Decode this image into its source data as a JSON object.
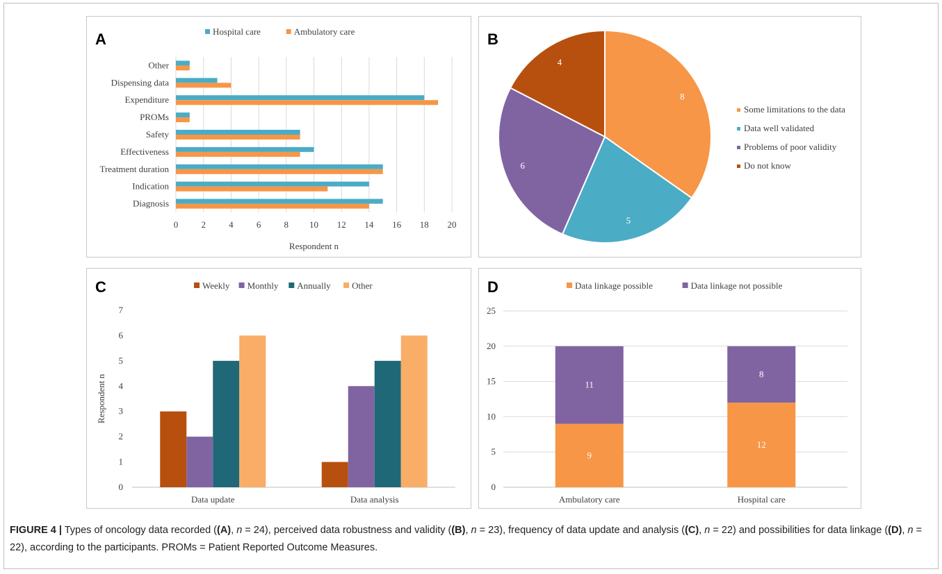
{
  "caption": {
    "label": "FIGURE 4 |",
    "parts": [
      {
        "t": "Types of oncology data recorded ("
      },
      {
        "t": "(A)",
        "b": true
      },
      {
        "t": ", "
      },
      {
        "t": "n",
        "i": true
      },
      {
        "t": " = 24), perceived data robustness and validity ("
      },
      {
        "t": "(B)",
        "b": true
      },
      {
        "t": ", "
      },
      {
        "t": "n",
        "i": true
      },
      {
        "t": " = 23), frequency of data update and analysis ("
      },
      {
        "t": "(C)",
        "b": true
      },
      {
        "t": ", "
      },
      {
        "t": "n",
        "i": true
      },
      {
        "t": " = 22) and possibilities for data linkage ("
      },
      {
        "t": "(D)",
        "b": true
      },
      {
        "t": ", "
      },
      {
        "t": "n",
        "i": true
      },
      {
        "t": " = 22), according to the participants. PROMs = Patient Reported Outcome Measures."
      }
    ]
  },
  "chart_data": [
    {
      "panel_letter": "A",
      "type": "bar",
      "orientation": "horizontal",
      "categories": [
        "Other",
        "Dispensing data",
        "Expenditure",
        "PROMs",
        "Safety",
        "Effectiveness",
        "Treatment duration",
        "Indication",
        "Diagnosis"
      ],
      "series": [
        {
          "name": "Hospital care",
          "color": "#4bacc6",
          "values": [
            1,
            3,
            18,
            1,
            9,
            10,
            15,
            14,
            15
          ]
        },
        {
          "name": "Ambulatory care",
          "color": "#f79646",
          "values": [
            1,
            4,
            19,
            1,
            9,
            9,
            15,
            11,
            14
          ]
        }
      ],
      "xlabel": "Respondent n",
      "xlim": [
        0,
        20
      ],
      "xticks": [
        "0",
        "2",
        "4",
        "6",
        "8",
        "10",
        "12",
        "14",
        "16",
        "18",
        "20"
      ],
      "grid": true,
      "legend": "top"
    },
    {
      "panel_letter": "B",
      "type": "pie",
      "slices": [
        {
          "label": "Some limitations to the data",
          "value": 8,
          "color": "#f79646"
        },
        {
          "label": "Data well validated",
          "value": 5,
          "color": "#4bacc6"
        },
        {
          "label": "Problems of poor validity",
          "value": 6,
          "color": "#8064a2"
        },
        {
          "label": "Do not know",
          "value": 4,
          "color": "#b7500e"
        }
      ],
      "legend": "right"
    },
    {
      "panel_letter": "C",
      "type": "bar",
      "orientation": "vertical",
      "categories": [
        "Data update",
        "Data analysis"
      ],
      "series": [
        {
          "name": "Weekly",
          "color": "#b7500e",
          "values": [
            3,
            1
          ]
        },
        {
          "name": "Monthly",
          "color": "#8064a2",
          "values": [
            2,
            4
          ]
        },
        {
          "name": "Annually",
          "color": "#1f6878",
          "values": [
            5,
            5
          ]
        },
        {
          "name": "Other",
          "color": "#f9ad66",
          "values": [
            6,
            6
          ]
        }
      ],
      "ylabel": "Respondent n",
      "ylim": [
        0,
        7
      ],
      "yticks": [
        "0",
        "1",
        "2",
        "3",
        "4",
        "5",
        "6",
        "7"
      ],
      "grid": false,
      "legend": "top"
    },
    {
      "panel_letter": "D",
      "type": "bar",
      "stacked": true,
      "categories": [
        "Ambulatory care",
        "Hospital care"
      ],
      "series": [
        {
          "name": "Data linkage possible",
          "color": "#f79646",
          "values": [
            9,
            12
          ]
        },
        {
          "name": "Data linkage not possible",
          "color": "#8064a2",
          "values": [
            11,
            8
          ]
        }
      ],
      "ylim": [
        0,
        25
      ],
      "yticks": [
        "0",
        "5",
        "10",
        "15",
        "20",
        "25"
      ],
      "grid": true,
      "legend": "top"
    }
  ]
}
